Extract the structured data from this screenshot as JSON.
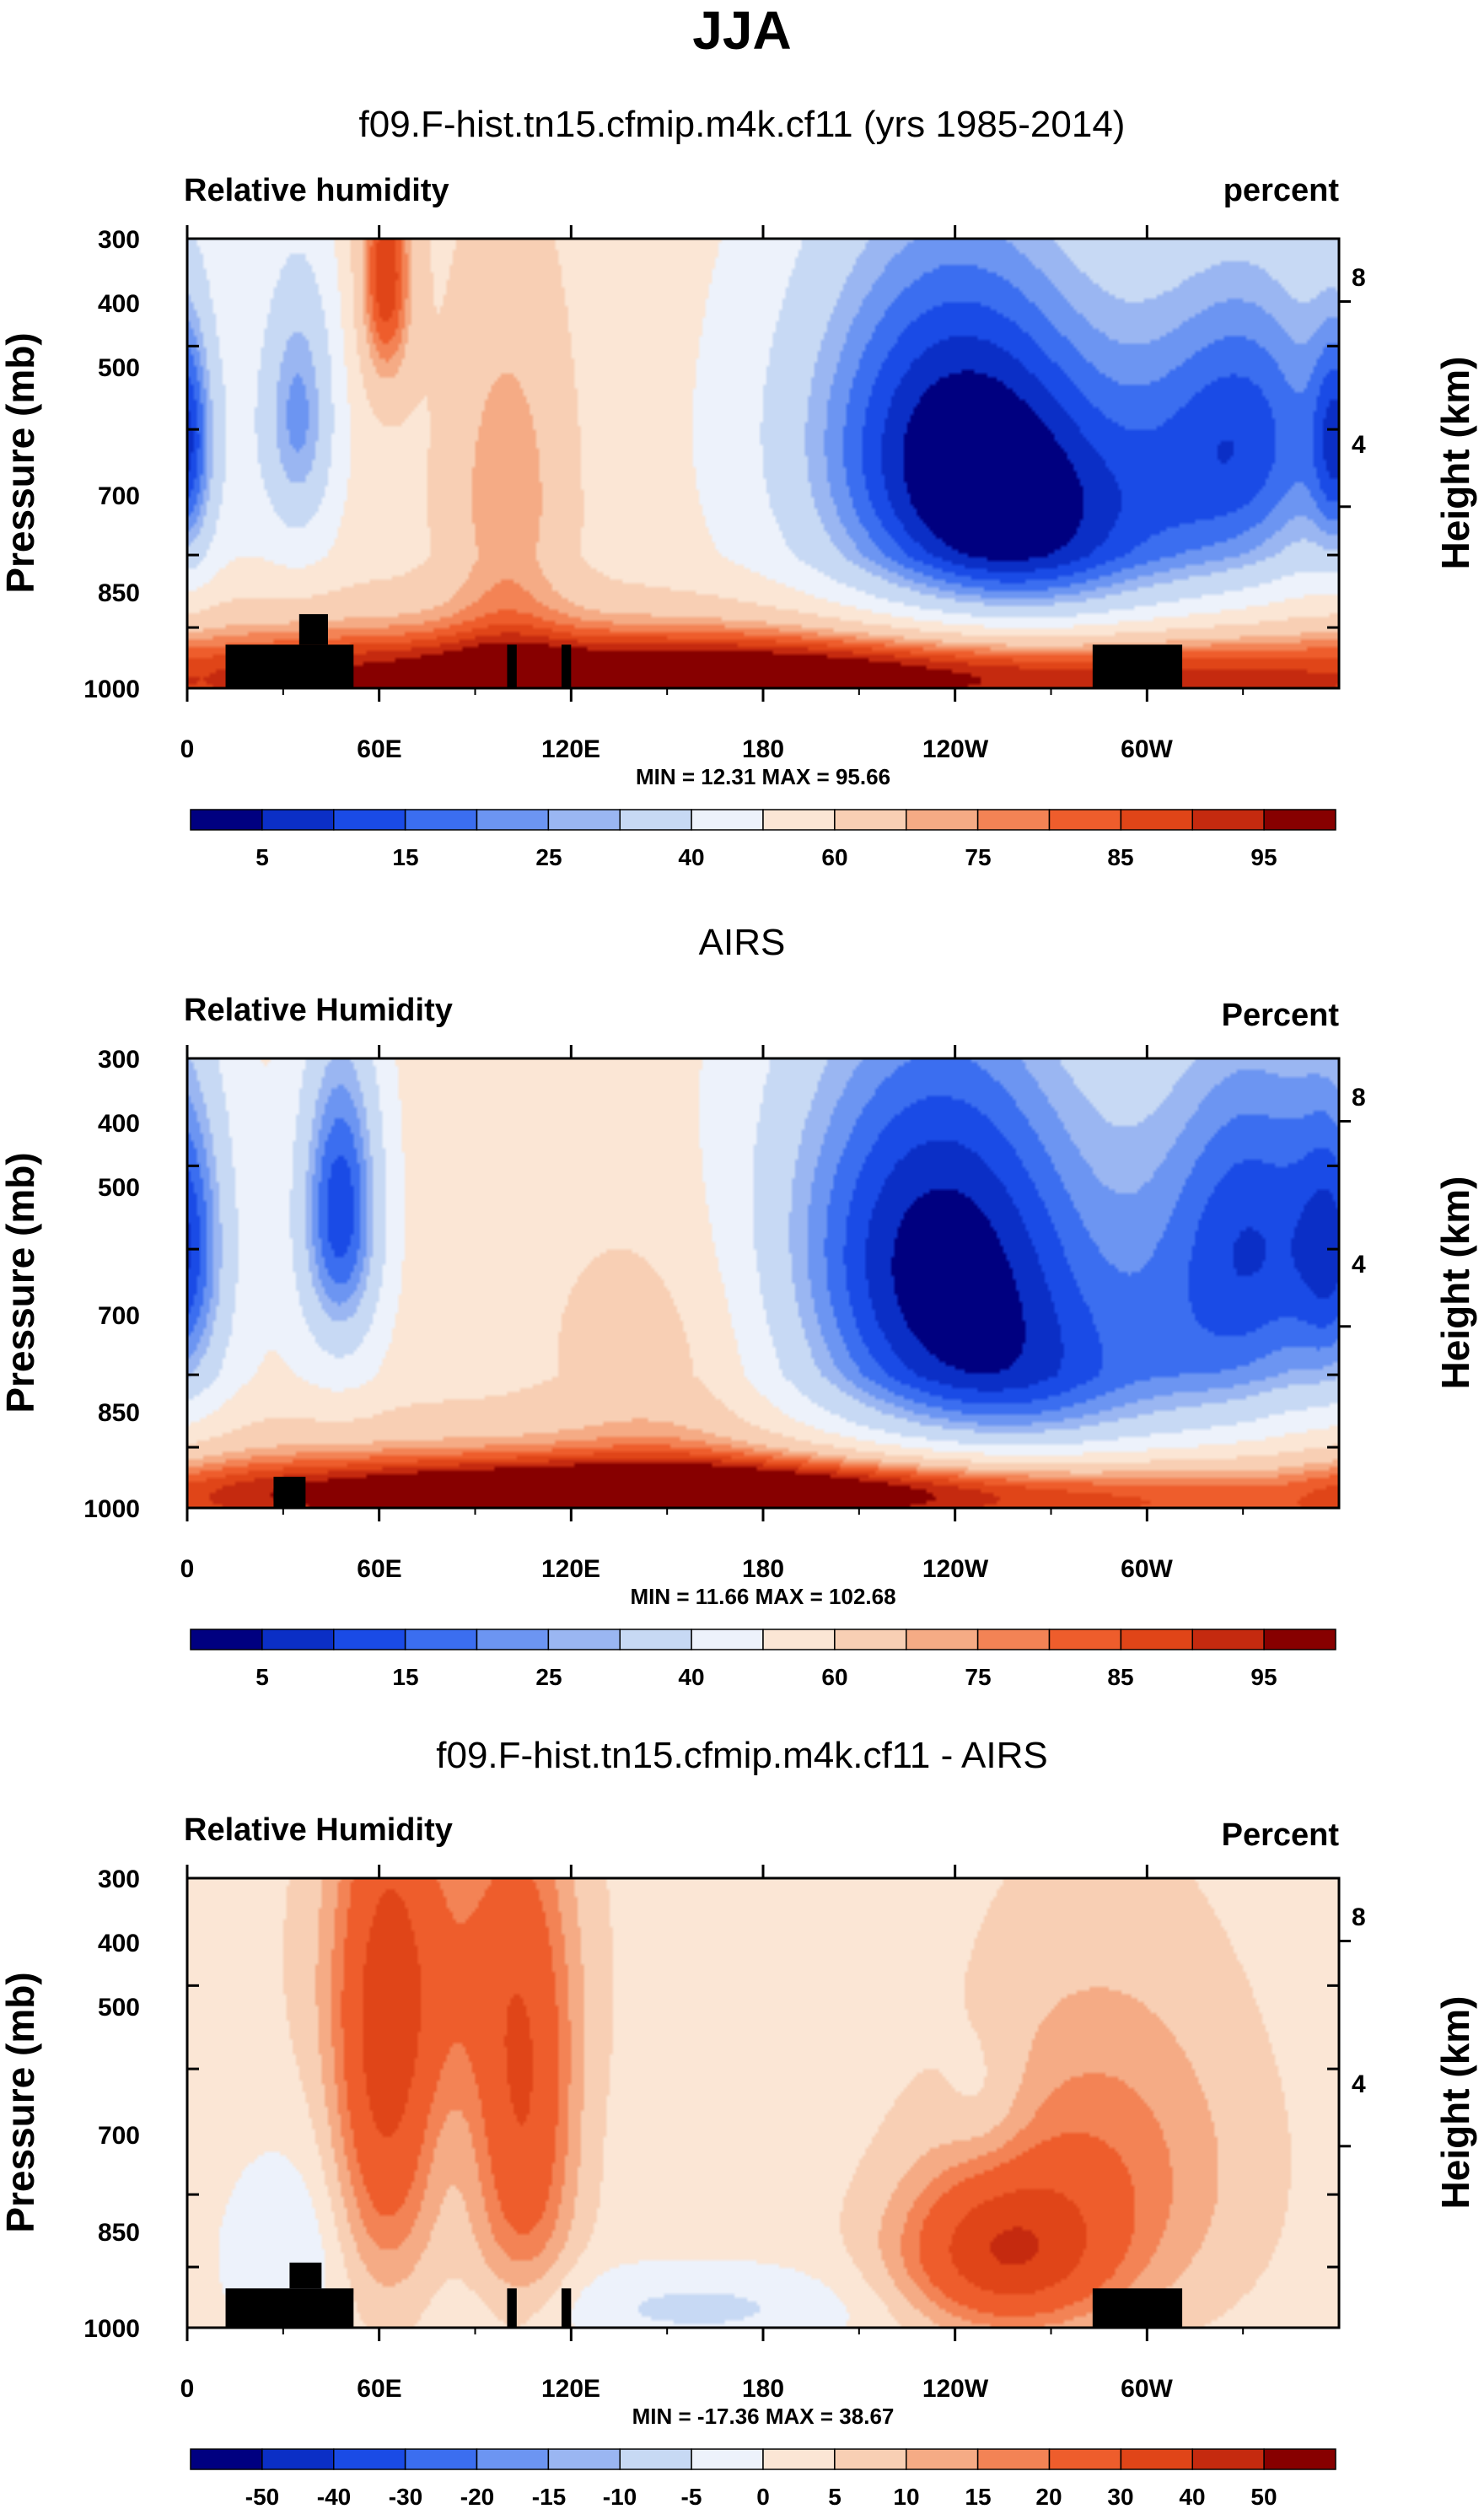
{
  "figure": {
    "title": "JJA"
  },
  "colors": {
    "levels": [
      "#000080",
      "#0b2fc6",
      "#1a4be6",
      "#3b6ef0",
      "#6c95f2",
      "#9ab6f2",
      "#c7d9f4",
      "#edf2fb",
      "#fbe6d5",
      "#f8cfb4",
      "#f5ab85",
      "#f38355",
      "#ee5d2c",
      "#e04518",
      "#c52a0f",
      "#870000"
    ],
    "land": "#000000"
  },
  "chart_data": [
    {
      "type": "contour",
      "id": "model",
      "title": "f09.F-hist.tn15.cfmip.m4k.cf11 (yrs 1985-2014)",
      "left_label": "Relative humidity",
      "right_label": "percent",
      "ylabel": "Pressure (mb)",
      "y2label": "Height (km)",
      "yticks": [
        300,
        400,
        500,
        700,
        850,
        1000
      ],
      "y2ticks": [
        8,
        4
      ],
      "xticks": [
        "0",
        "60E",
        "120E",
        "180",
        "120W",
        "60W"
      ],
      "min_label": "MIN = ",
      "min": "12.31",
      "max_label": "MAX = ",
      "max": "95.66",
      "colorbar_labels": [
        "5",
        "15",
        "25",
        "40",
        "60",
        "75",
        "85",
        "95"
      ],
      "fields": [
        {
          "lon": 0,
          "p": 520,
          "v": 30,
          "sx": 6,
          "sy": 130
        },
        {
          "lon": 35,
          "p": 480,
          "v": 25,
          "sx": 9,
          "sy": 140
        },
        {
          "lon": 62,
          "p": 330,
          "v": 90,
          "sx": 6,
          "sy": 80
        },
        {
          "lon": 100,
          "p": 600,
          "v": 75,
          "sx": 14,
          "sy": 220
        },
        {
          "lon": 240,
          "p": 490,
          "v": 8,
          "sx": 40,
          "sy": 210
        },
        {
          "lon": 333,
          "p": 500,
          "v": 18,
          "sx": 25,
          "sy": 180
        },
        {
          "lon": 270,
          "p": 700,
          "v": 28,
          "sx": 38,
          "sy": 160
        },
        {
          "lon": 185,
          "p": 950,
          "v": 88,
          "sx": 150,
          "sy": 70
        }
      ],
      "land": [
        {
          "lon0": 12,
          "lon1": 52,
          "p0": 890,
          "p1": 1000
        },
        {
          "lon0": 35,
          "lon1": 44,
          "p0": 820,
          "p1": 890
        },
        {
          "lon0": 100,
          "lon1": 103,
          "p0": 890,
          "p1": 1000
        },
        {
          "lon0": 117,
          "lon1": 120,
          "p0": 890,
          "p1": 1000
        },
        {
          "lon0": 283,
          "lon1": 311,
          "p0": 890,
          "p1": 1000
        }
      ]
    },
    {
      "type": "contour",
      "id": "obs",
      "title": "AIRS",
      "left_label": "Relative Humidity",
      "right_label": "Percent",
      "ylabel": "Pressure (mb)",
      "y2label": "Height (km)",
      "yticks": [
        300,
        400,
        500,
        700,
        850,
        1000
      ],
      "y2ticks": [
        8,
        4
      ],
      "xticks": [
        "0",
        "60E",
        "120E",
        "180",
        "120W",
        "60W"
      ],
      "min_label": "MIN = ",
      "min": "11.66",
      "max_label": "MAX = ",
      "max": "102.68",
      "colorbar_labels": [
        "5",
        "15",
        "25",
        "40",
        "60",
        "75",
        "85",
        "95"
      ],
      "fields": [
        {
          "lon": 0,
          "p": 500,
          "v": 35,
          "sx": 9,
          "sy": 160
        },
        {
          "lon": 48,
          "p": 450,
          "v": 12,
          "sx": 10,
          "sy": 150
        },
        {
          "lon": 235,
          "p": 480,
          "v": 5,
          "sx": 42,
          "sy": 220
        },
        {
          "lon": 335,
          "p": 480,
          "v": 15,
          "sx": 25,
          "sy": 200
        },
        {
          "lon": 150,
          "p": 650,
          "v": 68,
          "sx": 25,
          "sy": 180
        },
        {
          "lon": 270,
          "p": 760,
          "v": 30,
          "sx": 45,
          "sy": 150
        },
        {
          "lon": 160,
          "p": 950,
          "v": 95,
          "sx": 120,
          "sy": 60
        }
      ],
      "land": [
        {
          "lon0": 27,
          "lon1": 37,
          "p0": 920,
          "p1": 1000
        }
      ]
    },
    {
      "type": "contour",
      "id": "diff",
      "title": "f09.F-hist.tn15.cfmip.m4k.cf11 - AIRS",
      "left_label": "Relative Humidity",
      "right_label": "Percent",
      "ylabel": "Pressure (mb)",
      "y2label": "Height (km)",
      "yticks": [
        300,
        400,
        500,
        700,
        850,
        1000
      ],
      "y2ticks": [
        8,
        4
      ],
      "xticks": [
        "0",
        "60E",
        "120E",
        "180",
        "120W",
        "60W"
      ],
      "min_label": "MIN = ",
      "min": "-17.36",
      "max_label": "MAX = ",
      "max": "38.67",
      "colorbar_labels": [
        "-50",
        "-40",
        "-30",
        "-20",
        "-15",
        "-10",
        "-5",
        "0",
        "5",
        "10",
        "15",
        "20",
        "30",
        "40",
        "50"
      ],
      "fields": [
        {
          "lon": 62,
          "p": 520,
          "v": 30,
          "sx": 11,
          "sy": 240
        },
        {
          "lon": 105,
          "p": 580,
          "v": 28,
          "sx": 11,
          "sy": 230
        },
        {
          "lon": 255,
          "p": 820,
          "v": 35,
          "sx": 22,
          "sy": 120
        },
        {
          "lon": 80,
          "p": 380,
          "v": 16,
          "sx": 25,
          "sy": 120
        },
        {
          "lon": 285,
          "p": 650,
          "v": 18,
          "sx": 30,
          "sy": 200
        },
        {
          "lon": 160,
          "p": 950,
          "v": -6,
          "sx": 40,
          "sy": 80
        },
        {
          "lon": 30,
          "p": 820,
          "v": -5,
          "sx": 15,
          "sy": 150
        },
        {
          "lon": 250,
          "p": 560,
          "v": -3,
          "sx": 10,
          "sy": 80
        }
      ],
      "land": [
        {
          "lon0": 12,
          "lon1": 52,
          "p0": 900,
          "p1": 1000
        },
        {
          "lon0": 32,
          "lon1": 42,
          "p0": 840,
          "p1": 900
        },
        {
          "lon0": 100,
          "lon1": 103,
          "p0": 900,
          "p1": 1000
        },
        {
          "lon0": 117,
          "lon1": 120,
          "p0": 900,
          "p1": 1000
        },
        {
          "lon0": 283,
          "lon1": 311,
          "p0": 900,
          "p1": 1000
        }
      ]
    }
  ]
}
